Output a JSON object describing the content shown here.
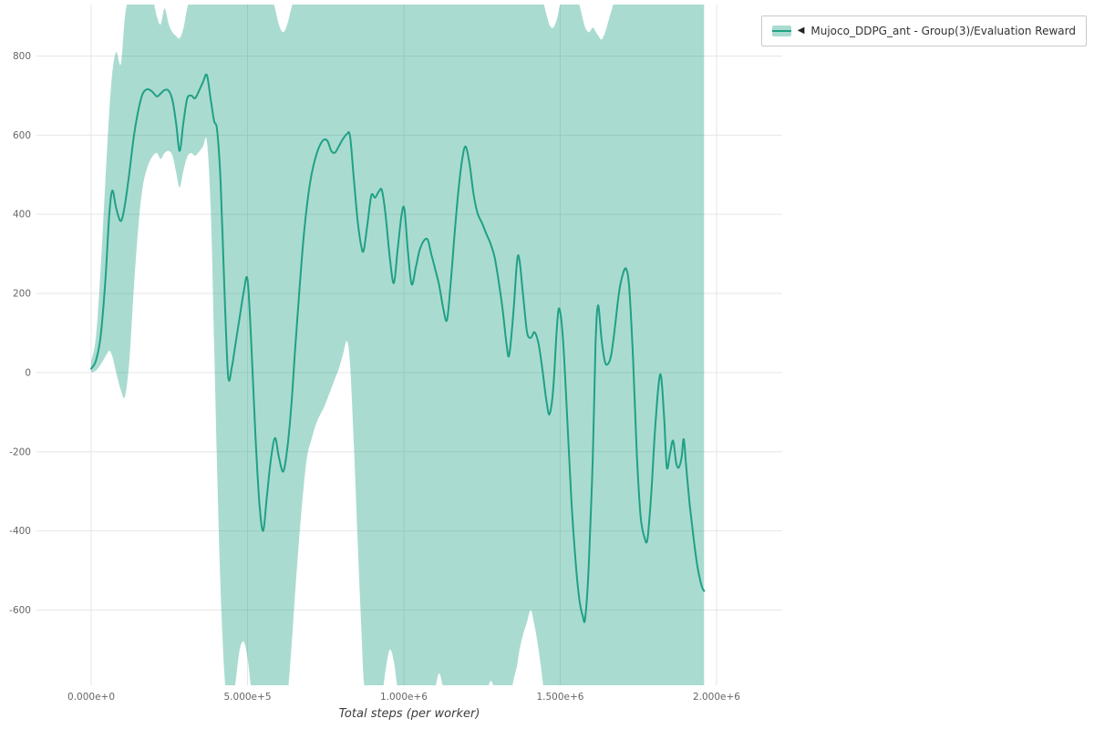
{
  "legend": {
    "marker": "◀",
    "label": "Mujoco_DDPG_ant - Group(3)/Evaluation Reward"
  },
  "colors": {
    "line": "#1fa185",
    "band": "#1fa185",
    "band_opacity": 0.38,
    "grid": "#e6e6e6",
    "tick_text": "#666666",
    "axis_label_text": "#3d3d3d",
    "legend_border": "#c9c9c9",
    "legend_bg": "#ffffff",
    "page_bg": "#ffffff"
  },
  "chart_data": {
    "type": "line",
    "title": "",
    "xlabel": "Total steps (per worker)",
    "ylabel": "",
    "grid": true,
    "legend_position": "top-right",
    "xlim": [
      -175000,
      2210000
    ],
    "ylim": [
      -790,
      930
    ],
    "x_ticks": [
      {
        "value": 0,
        "label": "0.000e+0"
      },
      {
        "value": 500000,
        "label": "5.000e+5"
      },
      {
        "value": 1000000,
        "label": "1.000e+6"
      },
      {
        "value": 1500000,
        "label": "1.500e+6"
      },
      {
        "value": 2000000,
        "label": "2.000e+6"
      }
    ],
    "y_ticks": [
      {
        "value": 800,
        "label": "800"
      },
      {
        "value": 600,
        "label": "600"
      },
      {
        "value": 400,
        "label": "400"
      },
      {
        "value": 200,
        "label": "200"
      },
      {
        "value": 0,
        "label": "0"
      },
      {
        "value": -200,
        "label": "-200"
      },
      {
        "value": -400,
        "label": "-400"
      },
      {
        "value": -600,
        "label": "-600"
      }
    ],
    "series": [
      {
        "name": "Mujoco_DDPG_ant - Group(3)/Evaluation Reward",
        "color": "#1fa185",
        "band": "min-max across group of 3 runs",
        "points_format": [
          "step",
          "mean",
          "band_low",
          "band_high"
        ],
        "points": [
          [
            0,
            10,
            0,
            28
          ],
          [
            15000,
            30,
            5,
            90
          ],
          [
            30000,
            90,
            20,
            260
          ],
          [
            45000,
            230,
            40,
            480
          ],
          [
            58000,
            400,
            55,
            660
          ],
          [
            68000,
            460,
            40,
            760
          ],
          [
            80000,
            415,
            0,
            810
          ],
          [
            95000,
            383,
            -45,
            780
          ],
          [
            108000,
            425,
            -60,
            900
          ],
          [
            122000,
            505,
            30,
            950
          ],
          [
            137000,
            600,
            220,
            950
          ],
          [
            152000,
            668,
            380,
            950
          ],
          [
            165000,
            705,
            470,
            950
          ],
          [
            180000,
            716,
            520,
            950
          ],
          [
            195000,
            710,
            545,
            950
          ],
          [
            210000,
            698,
            555,
            900
          ],
          [
            222000,
            705,
            540,
            880
          ],
          [
            235000,
            714,
            555,
            920
          ],
          [
            248000,
            712,
            560,
            880
          ],
          [
            260000,
            688,
            548,
            860
          ],
          [
            272000,
            628,
            505,
            850
          ],
          [
            283000,
            560,
            468,
            845
          ],
          [
            295000,
            632,
            510,
            870
          ],
          [
            307000,
            692,
            545,
            920
          ],
          [
            320000,
            700,
            555,
            950
          ],
          [
            332000,
            693,
            548,
            950
          ],
          [
            345000,
            712,
            558,
            950
          ],
          [
            358000,
            735,
            572,
            950
          ],
          [
            370000,
            752,
            585,
            950
          ],
          [
            382000,
            692,
            420,
            950
          ],
          [
            393000,
            636,
            80,
            950
          ],
          [
            403000,
            612,
            -250,
            950
          ],
          [
            414000,
            480,
            -550,
            950
          ],
          [
            426000,
            215,
            -760,
            950
          ],
          [
            438000,
            -8,
            -850,
            950
          ],
          [
            450000,
            15,
            -850,
            950
          ],
          [
            462000,
            75,
            -780,
            950
          ],
          [
            475000,
            140,
            -700,
            950
          ],
          [
            488000,
            205,
            -680,
            950
          ],
          [
            500000,
            235,
            -720,
            950
          ],
          [
            512000,
            75,
            -800,
            950
          ],
          [
            525000,
            -155,
            -850,
            950
          ],
          [
            538000,
            -330,
            -850,
            950
          ],
          [
            550000,
            -400,
            -850,
            950
          ],
          [
            562000,
            -312,
            -850,
            950
          ],
          [
            575000,
            -218,
            -850,
            950
          ],
          [
            588000,
            -165,
            -850,
            920
          ],
          [
            600000,
            -212,
            -850,
            880
          ],
          [
            614000,
            -250,
            -850,
            860
          ],
          [
            627000,
            -192,
            -820,
            880
          ],
          [
            640000,
            -85,
            -700,
            920
          ],
          [
            652000,
            55,
            -560,
            950
          ],
          [
            665000,
            198,
            -420,
            950
          ],
          [
            678000,
            330,
            -300,
            950
          ],
          [
            691000,
            428,
            -210,
            950
          ],
          [
            704000,
            498,
            -170,
            950
          ],
          [
            717000,
            542,
            -135,
            950
          ],
          [
            730000,
            572,
            -110,
            950
          ],
          [
            743000,
            588,
            -90,
            950
          ],
          [
            756000,
            585,
            -65,
            950
          ],
          [
            768000,
            560,
            -40,
            950
          ],
          [
            780000,
            556,
            -15,
            950
          ],
          [
            792000,
            572,
            10,
            950
          ],
          [
            805000,
            590,
            45,
            950
          ],
          [
            818000,
            603,
            80,
            950
          ],
          [
            828000,
            597,
            20,
            950
          ],
          [
            840000,
            490,
            -180,
            950
          ],
          [
            852000,
            385,
            -420,
            950
          ],
          [
            864000,
            318,
            -650,
            950
          ],
          [
            872000,
            310,
            -780,
            950
          ],
          [
            884000,
            378,
            -850,
            950
          ],
          [
            896000,
            448,
            -850,
            950
          ],
          [
            908000,
            442,
            -850,
            950
          ],
          [
            920000,
            458,
            -850,
            950
          ],
          [
            930000,
            460,
            -820,
            950
          ],
          [
            942000,
            395,
            -750,
            950
          ],
          [
            955000,
            290,
            -700,
            950
          ],
          [
            968000,
            226,
            -730,
            950
          ],
          [
            980000,
            310,
            -800,
            950
          ],
          [
            993000,
            400,
            -850,
            950
          ],
          [
            1002000,
            412,
            -850,
            950
          ],
          [
            1013000,
            305,
            -850,
            950
          ],
          [
            1025000,
            223,
            -850,
            950
          ],
          [
            1038000,
            265,
            -850,
            950
          ],
          [
            1050000,
            308,
            -850,
            950
          ],
          [
            1063000,
            332,
            -850,
            950
          ],
          [
            1076000,
            336,
            -850,
            950
          ],
          [
            1088000,
            298,
            -850,
            950
          ],
          [
            1100000,
            262,
            -800,
            950
          ],
          [
            1113000,
            220,
            -760,
            950
          ],
          [
            1126000,
            162,
            -800,
            950
          ],
          [
            1138000,
            133,
            -850,
            950
          ],
          [
            1150000,
            228,
            -850,
            950
          ],
          [
            1163000,
            358,
            -850,
            950
          ],
          [
            1176000,
            472,
            -850,
            950
          ],
          [
            1188000,
            546,
            -850,
            950
          ],
          [
            1198000,
            571,
            -850,
            950
          ],
          [
            1210000,
            528,
            -850,
            950
          ],
          [
            1223000,
            450,
            -850,
            950
          ],
          [
            1236000,
            402,
            -850,
            950
          ],
          [
            1250000,
            378,
            -850,
            950
          ],
          [
            1263000,
            352,
            -820,
            950
          ],
          [
            1276000,
            328,
            -780,
            950
          ],
          [
            1290000,
            292,
            -800,
            950
          ],
          [
            1303000,
            232,
            -850,
            950
          ],
          [
            1316000,
            158,
            -850,
            950
          ],
          [
            1329000,
            68,
            -850,
            950
          ],
          [
            1337000,
            45,
            -830,
            950
          ],
          [
            1350000,
            148,
            -780,
            950
          ],
          [
            1362000,
            282,
            -740,
            950
          ],
          [
            1370000,
            283,
            -700,
            950
          ],
          [
            1382000,
            190,
            -660,
            950
          ],
          [
            1394000,
            102,
            -630,
            950
          ],
          [
            1406000,
            88,
            -600,
            950
          ],
          [
            1418000,
            102,
            -640,
            950
          ],
          [
            1431000,
            72,
            -700,
            950
          ],
          [
            1444000,
            2,
            -780,
            940
          ],
          [
            1456000,
            -72,
            -850,
            905
          ],
          [
            1466000,
            -105,
            -850,
            878
          ],
          [
            1478000,
            -38,
            -850,
            872
          ],
          [
            1490000,
            122,
            -850,
            895
          ],
          [
            1498000,
            160,
            -850,
            925
          ],
          [
            1510000,
            72,
            -850,
            950
          ],
          [
            1523000,
            -125,
            -850,
            950
          ],
          [
            1536000,
            -325,
            -850,
            950
          ],
          [
            1549000,
            -475,
            -850,
            950
          ],
          [
            1561000,
            -572,
            -850,
            930
          ],
          [
            1572000,
            -615,
            -850,
            895
          ],
          [
            1580000,
            -620,
            -850,
            872
          ],
          [
            1592000,
            -478,
            -850,
            860
          ],
          [
            1604000,
            -215,
            -850,
            872
          ],
          [
            1613000,
            70,
            -850,
            862
          ],
          [
            1621000,
            170,
            -850,
            852
          ],
          [
            1632000,
            85,
            -850,
            842
          ],
          [
            1643000,
            28,
            -850,
            858
          ],
          [
            1653000,
            22,
            -850,
            885
          ],
          [
            1664000,
            48,
            -850,
            915
          ],
          [
            1676000,
            122,
            -850,
            945
          ],
          [
            1688000,
            202,
            -850,
            950
          ],
          [
            1700000,
            248,
            -850,
            950
          ],
          [
            1711000,
            262,
            -850,
            950
          ],
          [
            1721000,
            212,
            -850,
            950
          ],
          [
            1733000,
            35,
            -850,
            950
          ],
          [
            1745000,
            -205,
            -850,
            950
          ],
          [
            1757000,
            -362,
            -850,
            950
          ],
          [
            1769000,
            -415,
            -850,
            950
          ],
          [
            1779000,
            -421,
            -850,
            950
          ],
          [
            1791000,
            -308,
            -850,
            950
          ],
          [
            1803000,
            -148,
            -850,
            950
          ],
          [
            1815000,
            -28,
            -850,
            950
          ],
          [
            1823000,
            -12,
            -850,
            950
          ],
          [
            1833000,
            -122,
            -850,
            950
          ],
          [
            1841000,
            -240,
            -850,
            950
          ],
          [
            1851000,
            -205,
            -850,
            950
          ],
          [
            1861000,
            -172,
            -850,
            950
          ],
          [
            1871000,
            -228,
            -850,
            950
          ],
          [
            1879000,
            -240,
            -850,
            950
          ],
          [
            1888000,
            -215,
            -850,
            950
          ],
          [
            1895000,
            -168,
            -850,
            950
          ],
          [
            1903000,
            -238,
            -850,
            950
          ],
          [
            1915000,
            -340,
            -850,
            950
          ],
          [
            1928000,
            -428,
            -850,
            950
          ],
          [
            1940000,
            -495,
            -850,
            950
          ],
          [
            1952000,
            -538,
            -850,
            950
          ],
          [
            1960000,
            -552,
            -850,
            950
          ]
        ]
      }
    ]
  }
}
